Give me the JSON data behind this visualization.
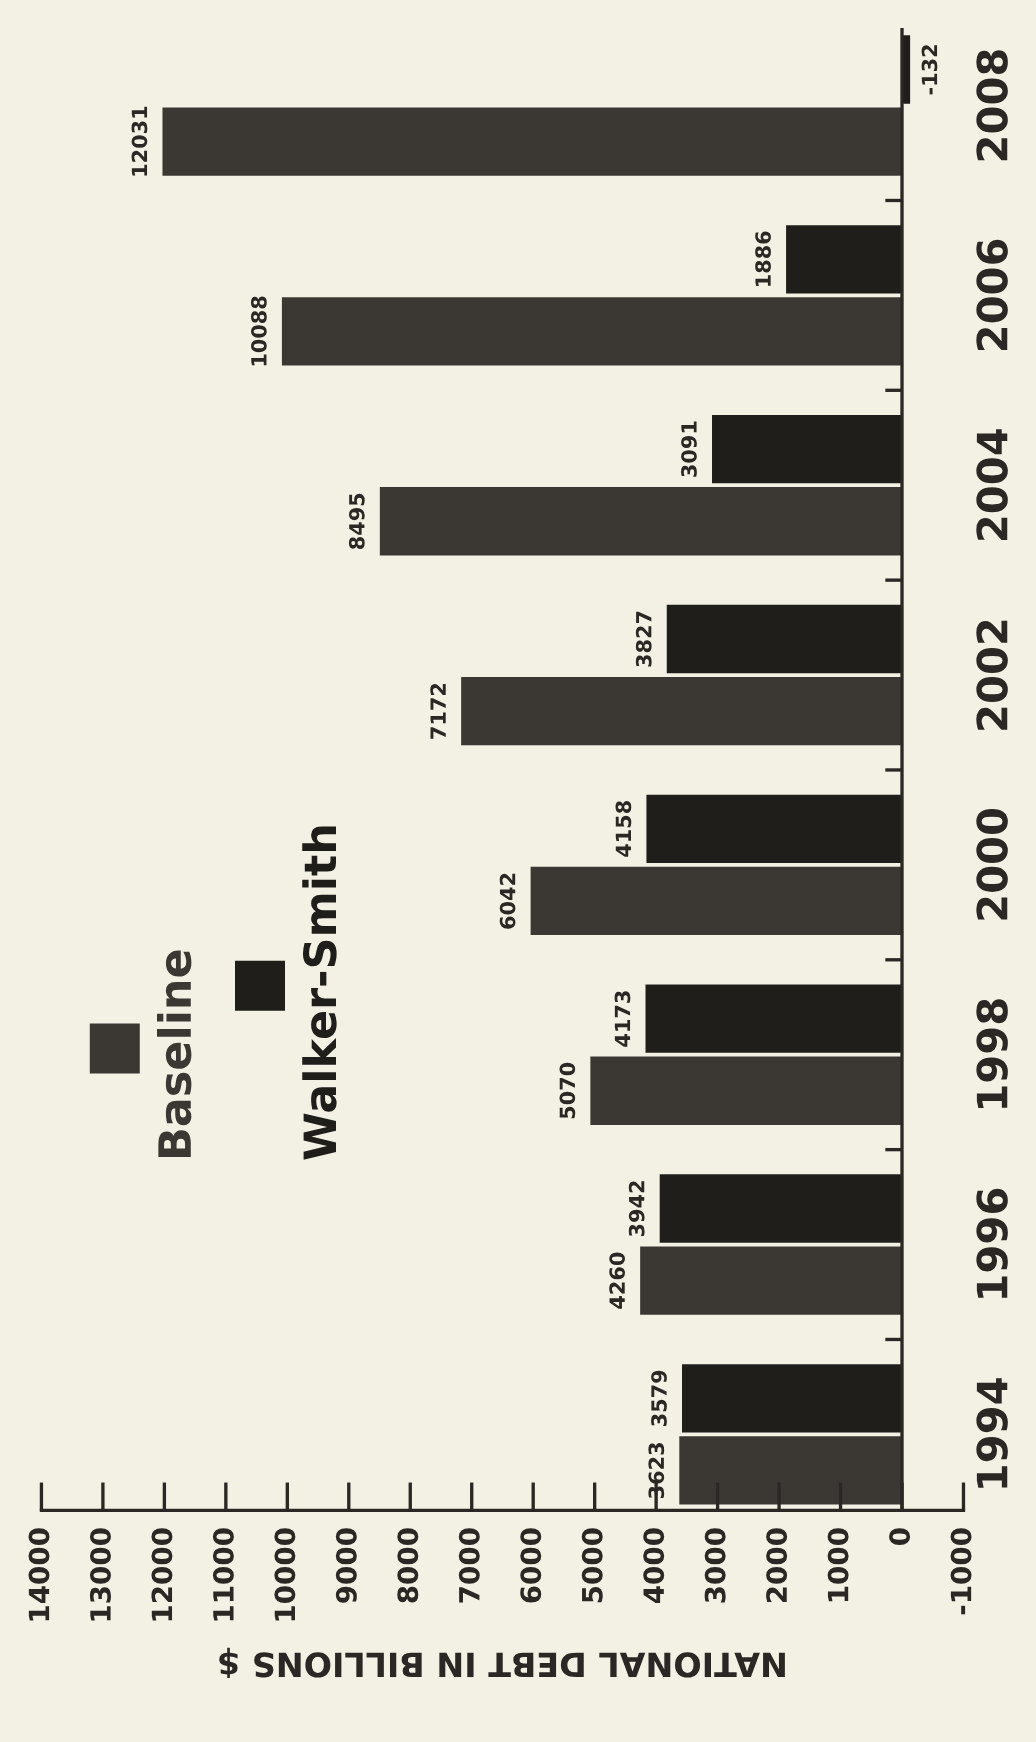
{
  "chart_data": {
    "type": "bar",
    "orientation": "horizontal",
    "xlabel": "NATIONAL DEBT IN BILLIONS $",
    "categories": [
      "2008",
      "2006",
      "2004",
      "2002",
      "2000",
      "1998",
      "1996",
      "1994"
    ],
    "series": [
      {
        "name": "Baseline",
        "color": "#3b3834",
        "values": [
          12031,
          10088,
          8495,
          7172,
          6042,
          5070,
          4260,
          3623
        ]
      },
      {
        "name": "Walker-Smith",
        "color": "#201e1b",
        "values": [
          -132,
          1886,
          3091,
          3827,
          4158,
          4173,
          3942,
          3579
        ]
      }
    ],
    "xlim": [
      14000,
      -1000
    ],
    "xticks": [
      14000,
      13000,
      12000,
      11000,
      10000,
      9000,
      8000,
      7000,
      6000,
      5000,
      4000,
      3000,
      2000,
      1000,
      0,
      -1000
    ],
    "data_labels": true,
    "legend": "left",
    "grid": false
  }
}
